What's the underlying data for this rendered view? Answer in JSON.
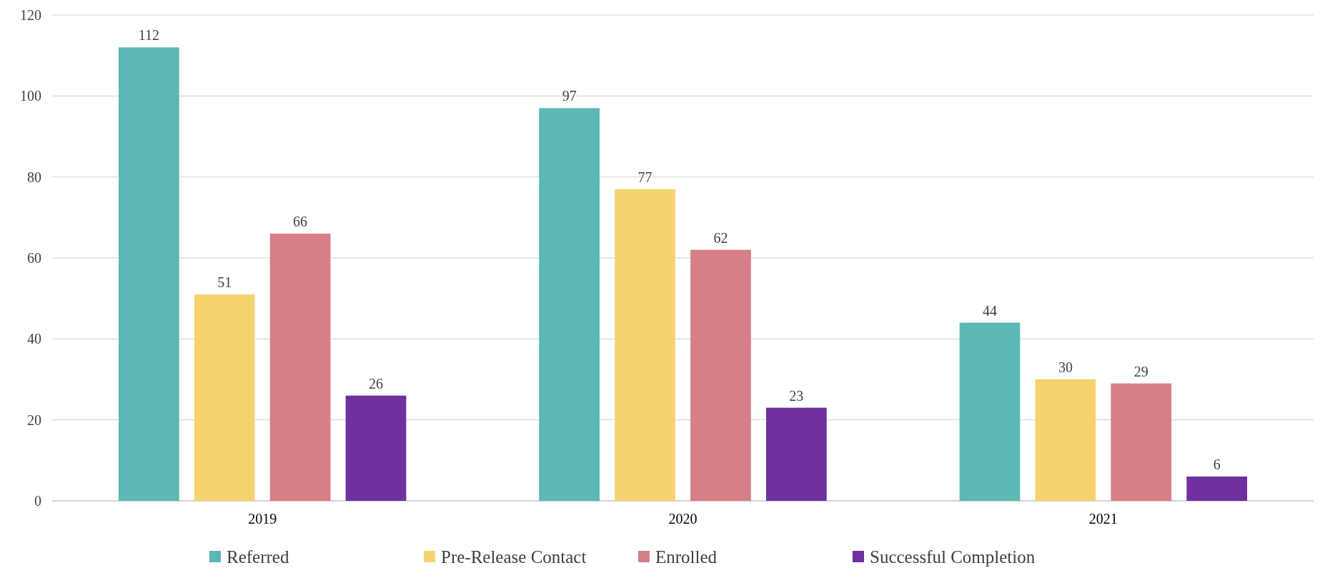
{
  "chart_data": {
    "type": "bar",
    "categories": [
      "2019",
      "2020",
      "2021"
    ],
    "series": [
      {
        "name": "Referred",
        "color": "#5bb8b2",
        "values": [
          112,
          97,
          44
        ]
      },
      {
        "name": "Pre-Release Contact",
        "color": "#f4d36f",
        "values": [
          51,
          77,
          30
        ]
      },
      {
        "name": "Enrolled",
        "color": "#d67f86",
        "values": [
          66,
          62,
          29
        ]
      },
      {
        "name": "Successful Completion",
        "color": "#7030a0",
        "values": [
          26,
          23,
          6
        ]
      }
    ],
    "ylim": [
      0,
      120
    ],
    "yticks": [
      0,
      20,
      40,
      60,
      80,
      100,
      120
    ],
    "grid": "y",
    "legend": "bottom",
    "data_labels": true
  }
}
